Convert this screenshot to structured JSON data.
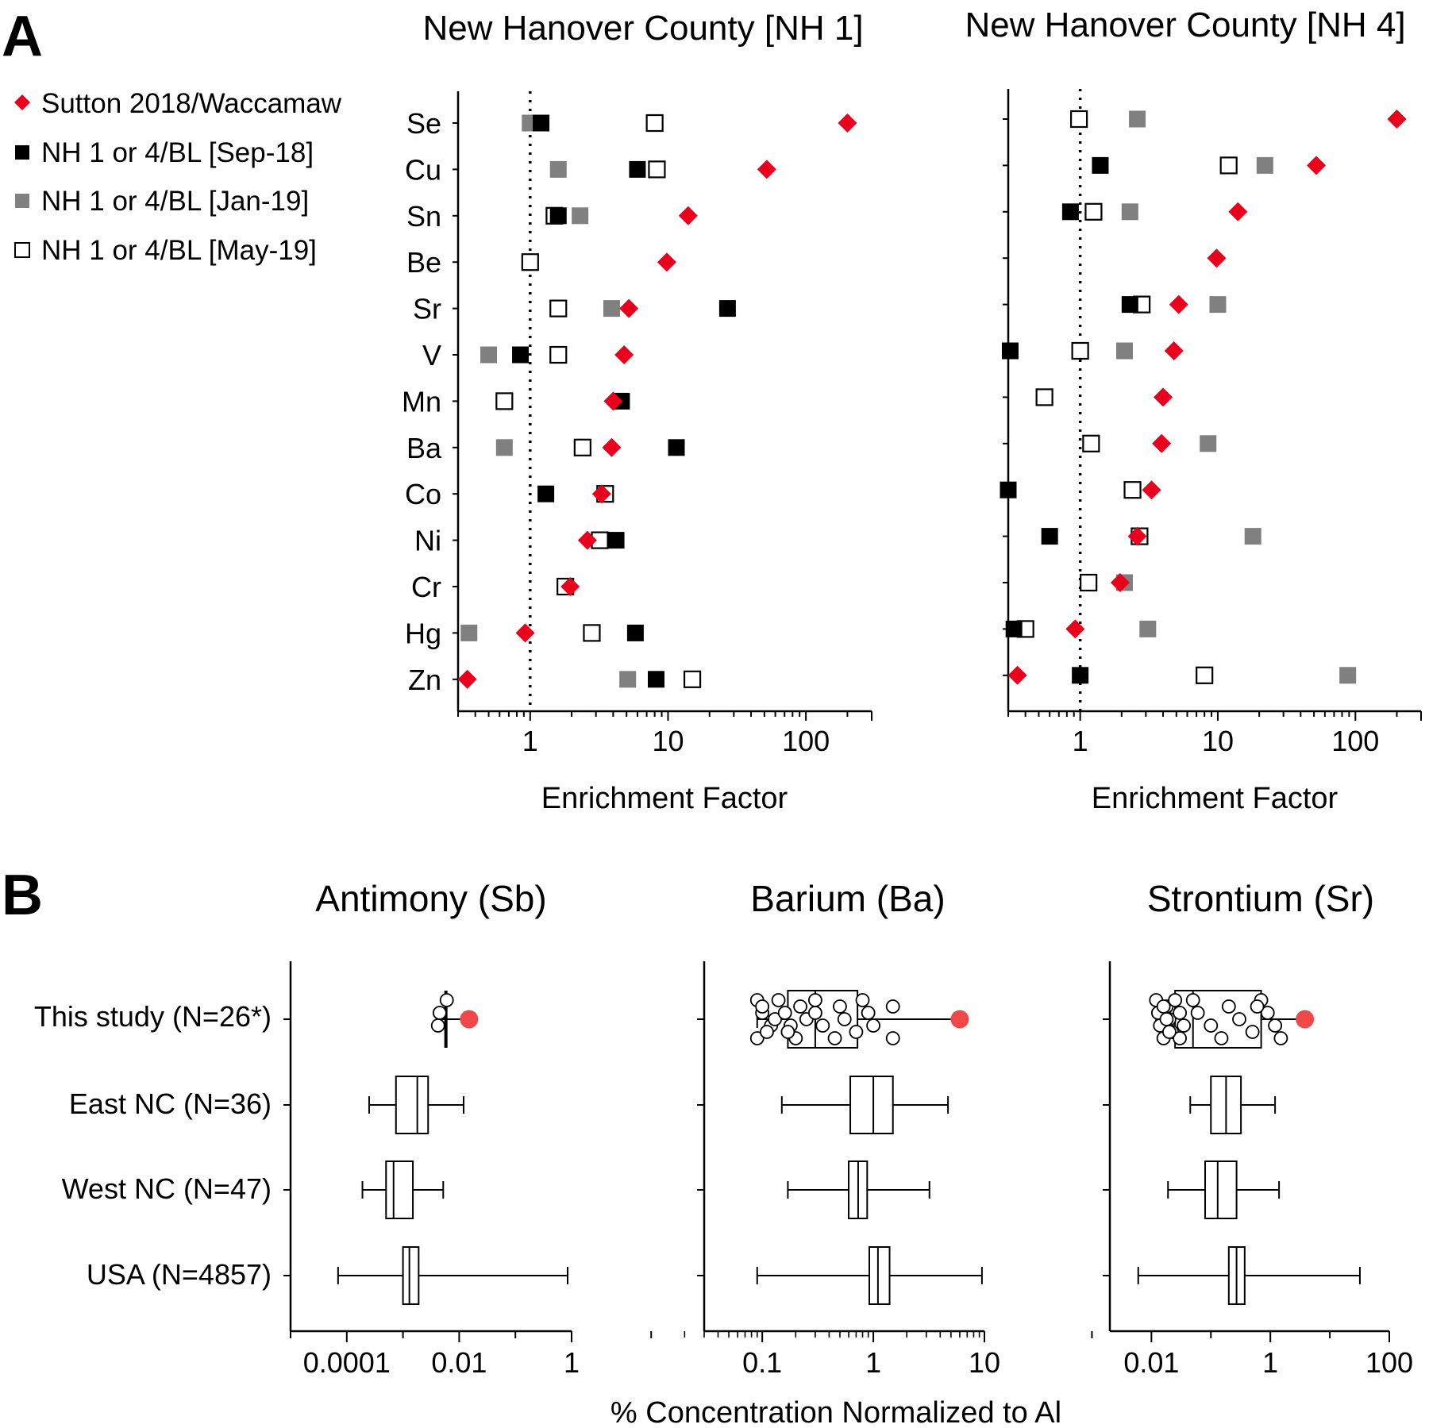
{
  "panel_labels": {
    "a": "A",
    "b": "B"
  },
  "colors": {
    "sutton": "#e8001c",
    "sep18": "#000000",
    "jan19": "#808080",
    "may19": "#ffffff",
    "stroke": "#000000",
    "this_study_max": "#f04848"
  },
  "legend": [
    {
      "key": "sutton",
      "label": "Sutton 2018/Waccamaw"
    },
    {
      "key": "sep18",
      "label": "NH 1 or 4/BL [Sep-18]"
    },
    {
      "key": "jan19",
      "label": "NH 1 or 4/BL [Jan-19]"
    },
    {
      "key": "may19",
      "label": "NH 1 or 4/BL [May-19]"
    }
  ],
  "chart_data": [
    {
      "type": "scatter",
      "title": "New Hanover County [NH 1]",
      "xlabel": "Enrichment Factor",
      "xscale": "log",
      "xlim": [
        0.3,
        300
      ],
      "xticks": [
        1,
        10,
        100
      ],
      "xtick_labels": [
        "1",
        "10",
        "100"
      ],
      "reference_line": 1,
      "categories": [
        "Se",
        "Cu",
        "Sn",
        "Be",
        "Sr",
        "V",
        "Mn",
        "Ba",
        "Co",
        "Ni",
        "Cr",
        "Hg",
        "Zn"
      ],
      "series": [
        {
          "key": "sutton",
          "name": "Sutton 2018/Waccamaw",
          "marker": "diamond",
          "values": [
            200,
            52,
            14,
            9.8,
            5.2,
            4.8,
            4.0,
            3.9,
            3.3,
            2.6,
            1.95,
            0.92,
            0.35
          ]
        },
        {
          "key": "sep18",
          "name": "NH 1 or 4/BL [Sep-18]",
          "marker": "square-filled",
          "values": [
            1.2,
            6.0,
            1.6,
            null,
            27,
            0.85,
            4.6,
            11.5,
            1.3,
            4.2,
            null,
            5.8,
            8.2
          ]
        },
        {
          "key": "jan19",
          "name": "NH 1 or 4/BL [Jan-19]",
          "marker": "square-gray",
          "values": [
            1.0,
            1.6,
            2.3,
            null,
            3.9,
            0.5,
            null,
            0.65,
            null,
            3.4,
            null,
            0.36,
            5.1
          ]
        },
        {
          "key": "may19",
          "name": "NH 1 or 4/BL [May-19]",
          "marker": "square-open",
          "values": [
            8.0,
            8.3,
            1.5,
            1.0,
            1.6,
            1.6,
            0.65,
            2.4,
            3.5,
            3.2,
            1.8,
            2.8,
            15
          ]
        }
      ]
    },
    {
      "type": "scatter",
      "title": "New Hanover County [NH 4]",
      "xlabel": "Enrichment Factor",
      "xscale": "log",
      "xlim": [
        0.3,
        300
      ],
      "xticks": [
        1,
        10,
        100
      ],
      "xtick_labels": [
        "1",
        "10",
        "100"
      ],
      "reference_line": 1,
      "categories": [
        "Se",
        "Cu",
        "Sn",
        "Be",
        "Sr",
        "V",
        "Mn",
        "Ba",
        "Co",
        "Ni",
        "Cr",
        "Hg",
        "Zn"
      ],
      "series": [
        {
          "key": "sutton",
          "name": "Sutton 2018/Waccamaw",
          "marker": "diamond",
          "values": [
            200,
            52,
            14,
            9.8,
            5.2,
            4.8,
            4.0,
            3.9,
            3.3,
            2.6,
            1.95,
            0.92,
            0.35
          ]
        },
        {
          "key": "sep18",
          "name": "NH 1 or 4/BL [Sep-18]",
          "marker": "square-filled",
          "values": [
            null,
            1.4,
            0.85,
            null,
            2.3,
            0.31,
            null,
            null,
            0.3,
            0.6,
            null,
            0.33,
            1.0
          ]
        },
        {
          "key": "jan19",
          "name": "NH 1 or 4/BL [Jan-19]",
          "marker": "square-gray",
          "values": [
            2.6,
            22,
            2.3,
            null,
            10,
            2.1,
            null,
            8.5,
            null,
            18,
            2.1,
            3.1,
            88
          ]
        },
        {
          "key": "may19",
          "name": "NH 1 or 4/BL [May-19]",
          "marker": "square-open",
          "values": [
            0.98,
            12,
            1.25,
            null,
            2.8,
            1.0,
            0.55,
            1.2,
            2.4,
            2.7,
            1.15,
            0.4,
            8.0
          ]
        }
      ]
    },
    {
      "type": "box",
      "title": "Antimony (Sb)",
      "xscale": "log",
      "xlim": [
        1e-05,
        1
      ],
      "xticks": [
        0.0001,
        0.01,
        1
      ],
      "xtick_labels": [
        "0.0001",
        "0.01",
        "1"
      ],
      "groups": [
        {
          "label": "This study (N=26*)",
          "points": [
            0.006,
            0.0045,
            0.0042
          ],
          "median": 0.0058,
          "max_point": 0.015
        },
        {
          "label": "East NC (N=36)",
          "min": 0.00025,
          "q1": 0.00075,
          "median": 0.0018,
          "q3": 0.0028,
          "max": 0.012
        },
        {
          "label": "West NC (N=47)",
          "min": 0.00019,
          "q1": 0.0005,
          "median": 0.00068,
          "q3": 0.0015,
          "max": 0.0052
        },
        {
          "label": "USA (N=4857)",
          "min": 7e-05,
          "q1": 0.001,
          "median": 0.0013,
          "q3": 0.0019,
          "max": 0.85
        }
      ]
    },
    {
      "type": "box",
      "title": "Barium (Ba)",
      "xscale": "log",
      "xlim": [
        0.03,
        10
      ],
      "xticks": [
        0.1,
        1,
        10
      ],
      "xtick_labels": [
        "0.1",
        "1",
        "10"
      ],
      "groups": [
        {
          "label": "This study (N=26*)",
          "points": [
            0.09,
            0.1,
            0.12,
            0.09,
            0.1,
            0.13,
            0.11,
            0.14,
            0.16,
            0.18,
            0.2,
            0.22,
            0.25,
            0.17,
            0.3,
            0.3,
            0.35,
            0.45,
            0.5,
            0.55,
            0.7,
            0.8,
            0.9,
            1.0,
            1.5,
            1.5
          ],
          "q1": 0.17,
          "median": 0.3,
          "q3": 0.72,
          "min": 0.09,
          "max": 6.0,
          "max_point": 6.0
        },
        {
          "label": "East NC (N=36)",
          "min": 0.15,
          "q1": 0.62,
          "median": 1.0,
          "q3": 1.5,
          "max": 4.7
        },
        {
          "label": "West NC (N=47)",
          "min": 0.17,
          "q1": 0.6,
          "median": 0.73,
          "q3": 0.88,
          "max": 3.2
        },
        {
          "label": "USA (N=4857)",
          "min": 0.09,
          "q1": 0.92,
          "median": 1.1,
          "q3": 1.4,
          "max": 9.5
        }
      ]
    },
    {
      "type": "box",
      "title": "Strontium (Sr)",
      "xscale": "log",
      "xlim": [
        0.002,
        100
      ],
      "xticks": [
        0.01,
        1,
        100
      ],
      "xtick_labels": [
        "0.01",
        "1",
        "100"
      ],
      "groups": [
        {
          "label": "This study (N=26*)",
          "points": [
            0.012,
            0.013,
            0.014,
            0.016,
            0.018,
            0.02,
            0.022,
            0.025,
            0.03,
            0.035,
            0.03,
            0.016,
            0.018,
            0.02,
            0.05,
            0.06,
            0.1,
            0.15,
            0.2,
            0.3,
            0.5,
            0.7,
            0.9,
            1.2,
            1.5,
            0.6
          ],
          "q1": 0.025,
          "median": 0.05,
          "q3": 0.7,
          "min": 0.012,
          "max": 3.8,
          "max_point": 3.8
        },
        {
          "label": "East NC (N=36)",
          "min": 0.045,
          "q1": 0.1,
          "median": 0.18,
          "q3": 0.32,
          "max": 1.2
        },
        {
          "label": "West NC (N=47)",
          "min": 0.019,
          "q1": 0.08,
          "median": 0.13,
          "q3": 0.27,
          "max": 1.4
        },
        {
          "label": "USA (N=4857)",
          "min": 0.006,
          "q1": 0.2,
          "median": 0.27,
          "q3": 0.37,
          "max": 32
        }
      ]
    }
  ],
  "panel_b_xlabel": "% Concentration Normalized to Al"
}
